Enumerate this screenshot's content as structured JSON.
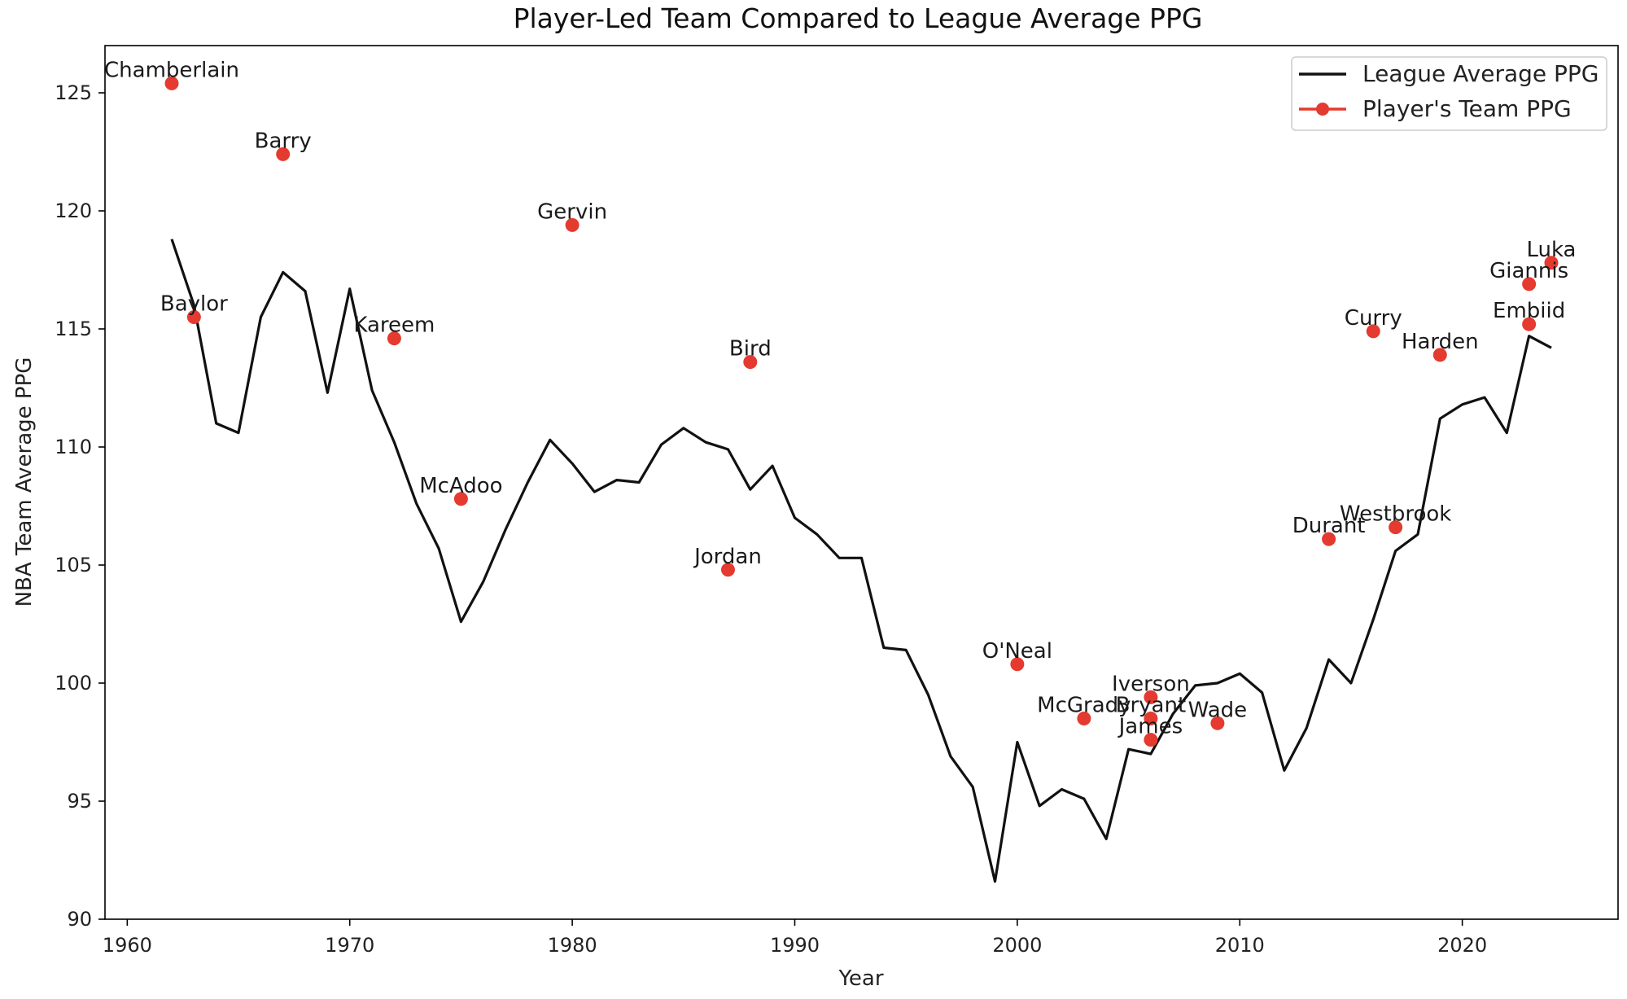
{
  "chart_data": {
    "type": "line",
    "title": "Player-Led Team Compared to League Average PPG",
    "xlabel": "Year",
    "ylabel": "NBA Team Average PPG",
    "xlim": [
      1959,
      2027
    ],
    "ylim": [
      90,
      127
    ],
    "x_ticks": [
      1960,
      1970,
      1980,
      1990,
      2000,
      2010,
      2020
    ],
    "y_ticks": [
      90,
      95,
      100,
      105,
      110,
      115,
      120,
      125
    ],
    "grid": false,
    "legend_position": "top-right",
    "colors": {
      "league": "#111111",
      "player": "#e53a2f"
    },
    "series": [
      {
        "name": "League Average PPG",
        "type": "line",
        "x": [
          1962,
          1963,
          1964,
          1965,
          1966,
          1967,
          1968,
          1969,
          1970,
          1971,
          1972,
          1973,
          1974,
          1975,
          1976,
          1977,
          1978,
          1979,
          1980,
          1981,
          1982,
          1983,
          1984,
          1985,
          1986,
          1987,
          1988,
          1989,
          1990,
          1991,
          1992,
          1993,
          1994,
          1995,
          1996,
          1997,
          1998,
          1999,
          2000,
          2001,
          2002,
          2003,
          2004,
          2005,
          2006,
          2007,
          2008,
          2009,
          2010,
          2011,
          2012,
          2013,
          2014,
          2015,
          2016,
          2017,
          2018,
          2019,
          2020,
          2021,
          2022,
          2023,
          2024
        ],
        "y": [
          118.8,
          116.0,
          111.0,
          110.6,
          115.5,
          117.4,
          116.6,
          112.3,
          116.7,
          112.4,
          110.2,
          107.6,
          105.7,
          102.6,
          104.3,
          106.5,
          108.5,
          110.3,
          109.3,
          108.1,
          108.6,
          108.5,
          110.1,
          110.8,
          110.2,
          109.9,
          108.2,
          109.2,
          107.0,
          106.3,
          105.3,
          105.3,
          101.5,
          101.4,
          99.5,
          96.9,
          95.6,
          91.6,
          97.5,
          94.8,
          95.5,
          95.1,
          93.4,
          97.2,
          97.0,
          98.7,
          99.9,
          100.0,
          100.4,
          99.6,
          96.3,
          98.1,
          101.0,
          100.0,
          102.7,
          105.6,
          106.3,
          111.2,
          111.8,
          112.1,
          110.6,
          114.7,
          114.2
        ]
      },
      {
        "name": "Player's Team PPG",
        "type": "scatter",
        "points": [
          {
            "label": "Chamberlain",
            "x": 1962,
            "y": 125.4
          },
          {
            "label": "Baylor",
            "x": 1963,
            "y": 115.5
          },
          {
            "label": "Barry",
            "x": 1967,
            "y": 122.4
          },
          {
            "label": "Kareem",
            "x": 1972,
            "y": 114.6
          },
          {
            "label": "McAdoo",
            "x": 1975,
            "y": 107.8
          },
          {
            "label": "Gervin",
            "x": 1980,
            "y": 119.4
          },
          {
            "label": "Jordan",
            "x": 1987,
            "y": 104.8
          },
          {
            "label": "Bird",
            "x": 1988,
            "y": 113.6
          },
          {
            "label": "O'Neal",
            "x": 2000,
            "y": 100.8
          },
          {
            "label": "McGrady",
            "x": 2003,
            "y": 98.5
          },
          {
            "label": "Iverson",
            "x": 2006,
            "y": 99.4
          },
          {
            "label": "Bryant",
            "x": 2006,
            "y": 98.5
          },
          {
            "label": "James",
            "x": 2006,
            "y": 97.6
          },
          {
            "label": "Wade",
            "x": 2009,
            "y": 98.3
          },
          {
            "label": "Durant",
            "x": 2014,
            "y": 106.1
          },
          {
            "label": "Curry",
            "x": 2016,
            "y": 114.9
          },
          {
            "label": "Westbrook",
            "x": 2017,
            "y": 106.6
          },
          {
            "label": "Harden",
            "x": 2019,
            "y": 113.9
          },
          {
            "label": "Luka",
            "x": 2024,
            "y": 117.8
          },
          {
            "label": "Giannis",
            "x": 2023,
            "y": 116.9
          },
          {
            "label": "Embiid",
            "x": 2023,
            "y": 115.2
          }
        ]
      }
    ]
  }
}
